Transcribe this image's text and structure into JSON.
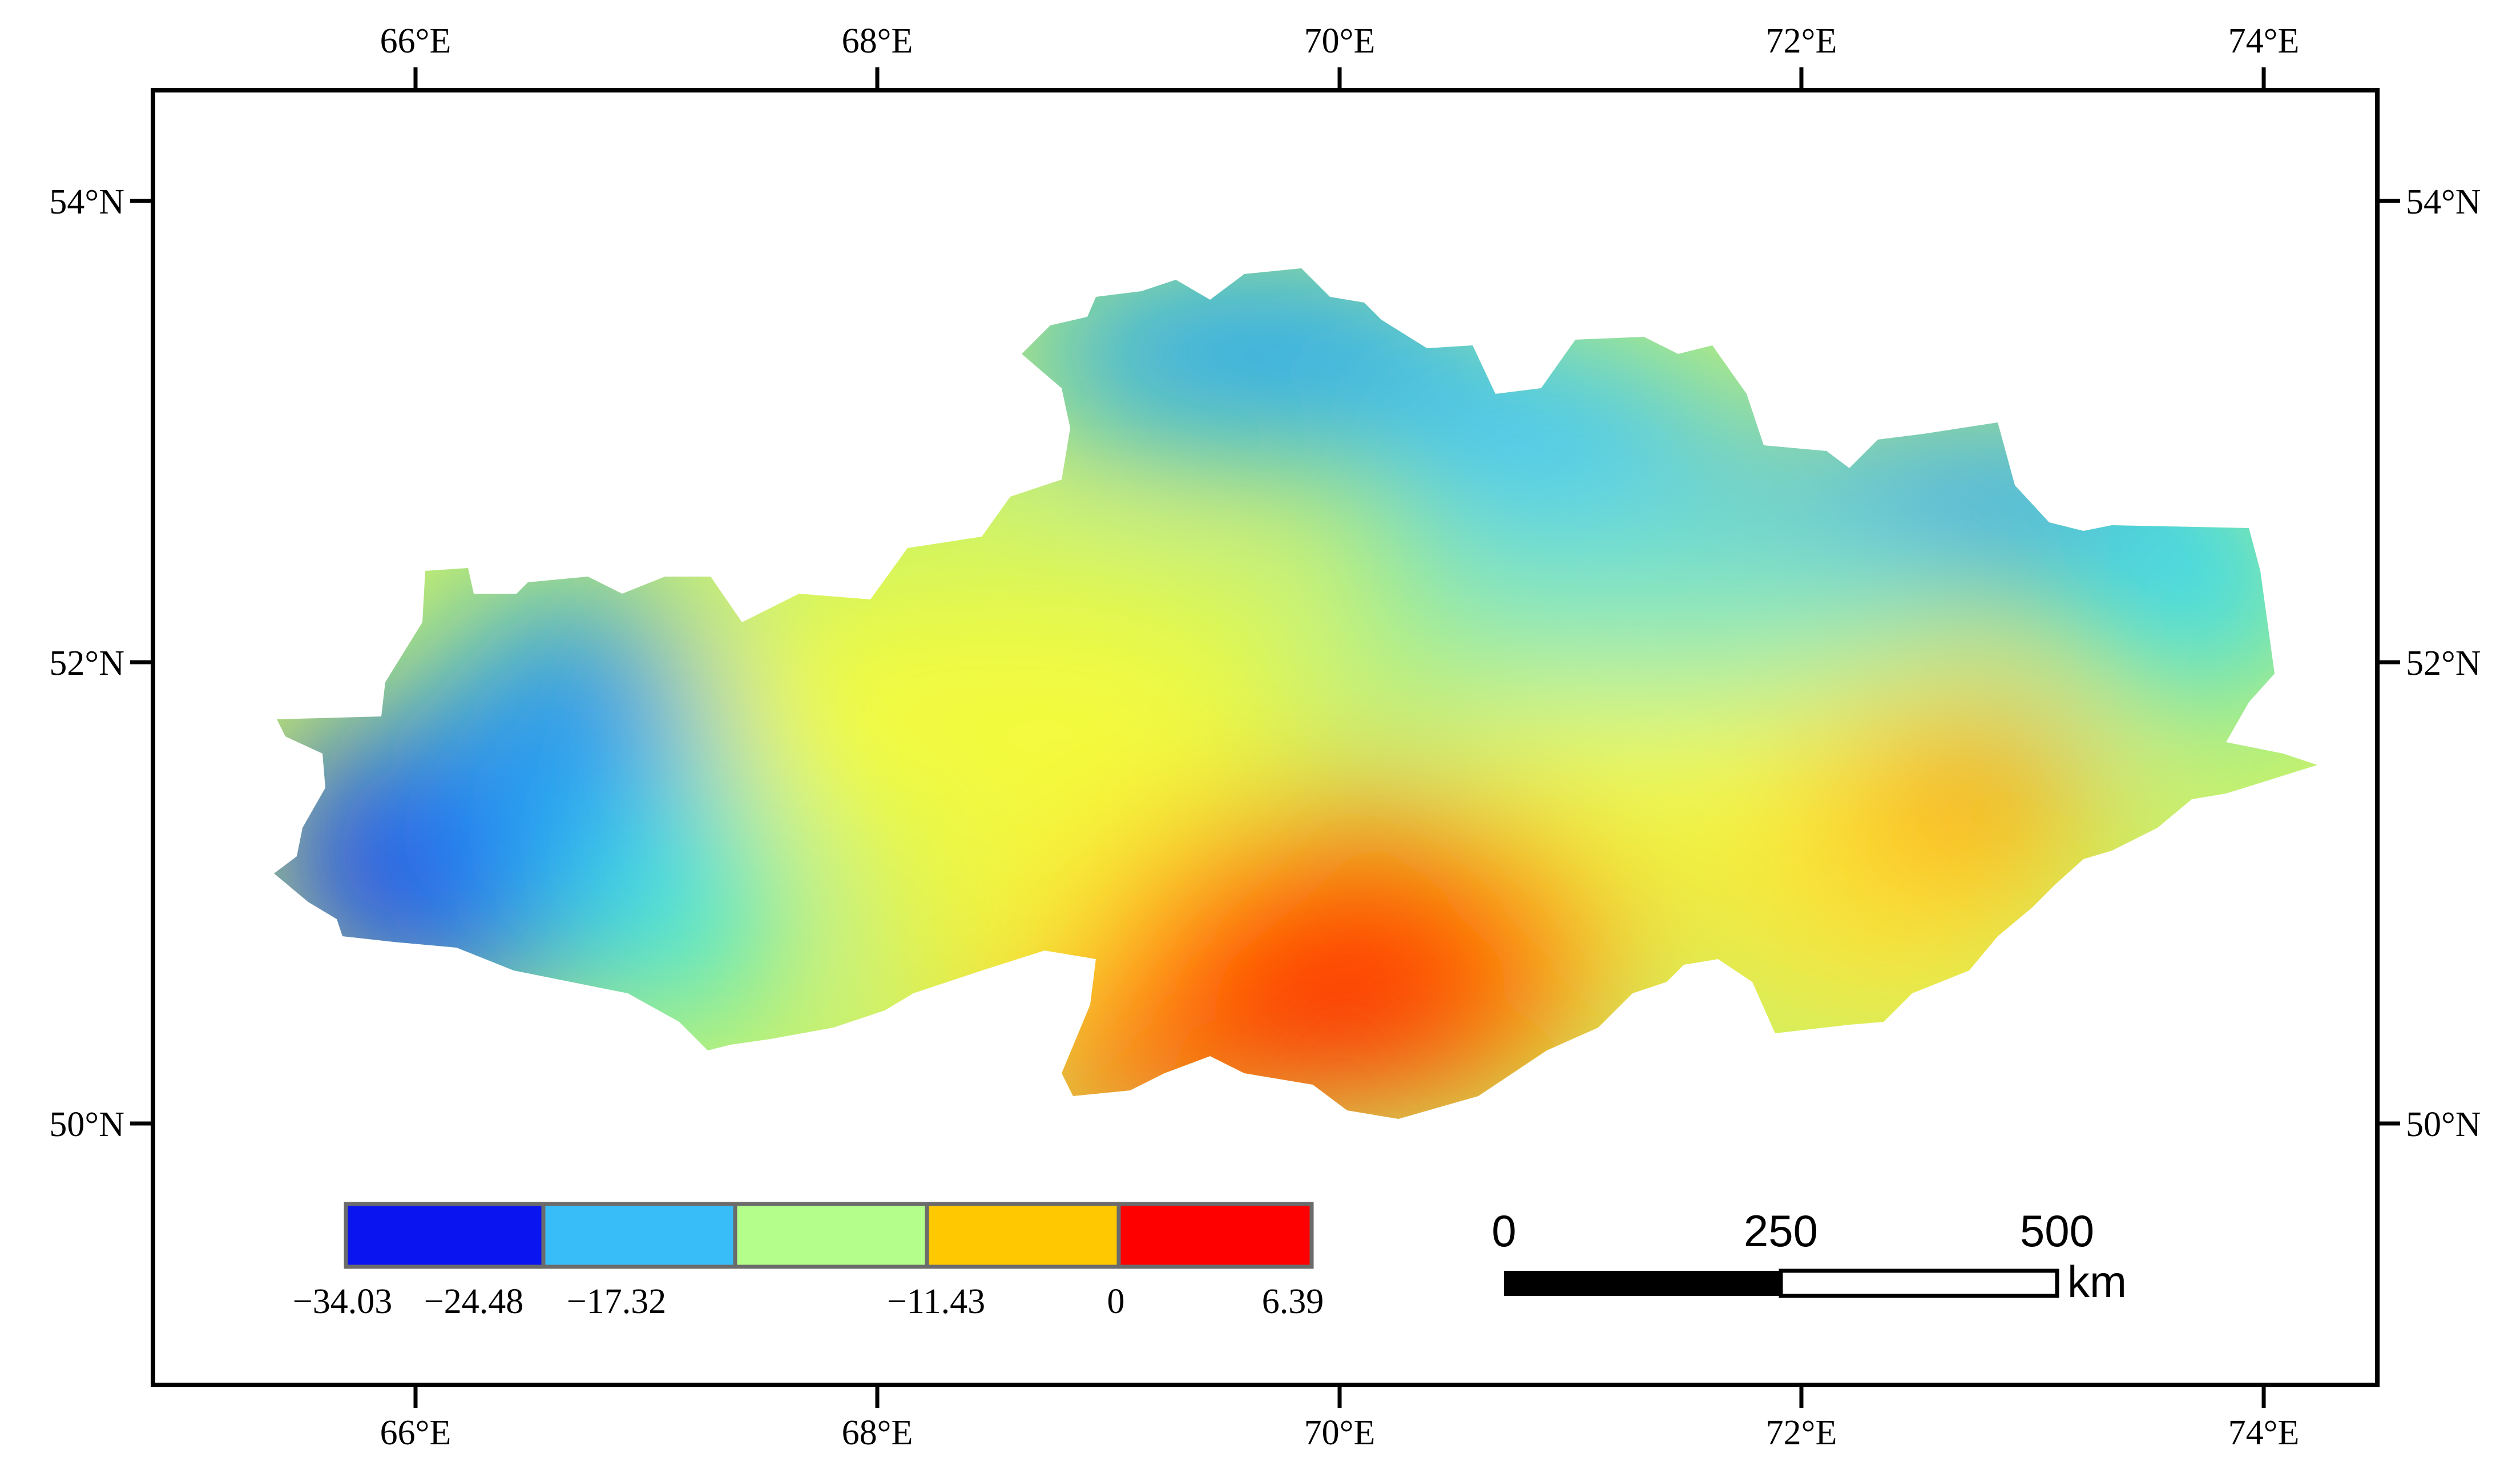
{
  "map": {
    "lon_labels": [
      "66°E",
      "68°E",
      "70°E",
      "72°E",
      "74°E"
    ],
    "lat_labels": [
      "54°N",
      "52°N",
      "50°N"
    ]
  },
  "legend": {
    "colors": [
      "#0a14f0",
      "#38bdf8",
      "#b4ff8c",
      "#ffc800",
      "#ff0000"
    ],
    "labels": [
      "−34.03",
      "−24.48",
      "−17.32",
      "−11.43",
      "0",
      "6.39"
    ]
  },
  "scale_bar": {
    "labels": [
      "0",
      "250",
      "500"
    ],
    "unit": "km"
  }
}
